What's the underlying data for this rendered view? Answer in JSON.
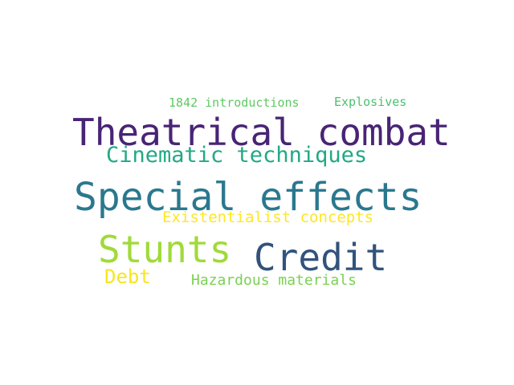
{
  "wordcloud": {
    "words": [
      {
        "key": "special_effects",
        "text": "Special effects",
        "color": "#2a788e"
      },
      {
        "key": "theatrical_combat",
        "text": "Theatrical combat",
        "color": "#482475"
      },
      {
        "key": "stunts",
        "text": "Stunts",
        "color": "#a0da39"
      },
      {
        "key": "credit",
        "text": "Credit",
        "color": "#31537c"
      },
      {
        "key": "cinematic_techniques",
        "text": "Cinematic techniques",
        "color": "#22a884"
      },
      {
        "key": "existentialist_concepts",
        "text": "Existentialist concepts",
        "color": "#fde725"
      },
      {
        "key": "debt",
        "text": "Debt",
        "color": "#f6e620"
      },
      {
        "key": "hazardous_materials",
        "text": "Hazardous materials",
        "color": "#7ad151"
      },
      {
        "key": "introductions_1842",
        "text": "1842 introductions",
        "color": "#5ec962"
      },
      {
        "key": "explosives",
        "text": "Explosives",
        "color": "#4ac16d"
      }
    ]
  }
}
